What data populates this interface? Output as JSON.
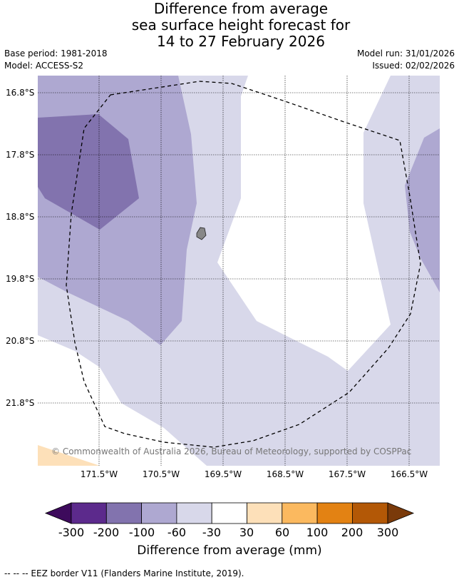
{
  "title_lines": [
    "Difference from average",
    "sea surface height forecast for",
    "14 to 27 February 2026"
  ],
  "base_period": "Base period: 1981-2018",
  "model": "Model: ACCESS-S2",
  "model_run": "Model run: 31/01/2026",
  "issued": "Issued: 02/02/2026",
  "attribution": "© Commonwealth of Australia 2026, Bureau of Meteorology, supported by COSPPac",
  "lat_labels": [
    "16.8°S",
    "17.8°S",
    "18.8°S",
    "19.8°S",
    "20.8°S",
    "21.8°S"
  ],
  "lon_labels": [
    "171.5°W",
    "170.5°W",
    "169.5°W",
    "168.5°W",
    "167.5°W",
    "166.5°W"
  ],
  "colorbar": {
    "ticks": [
      "-300",
      "-200",
      "-100",
      "-60",
      "-30",
      "30",
      "60",
      "100",
      "200",
      "300"
    ],
    "colors": [
      "#3d0a5c",
      "#5c2a8c",
      "#8273ae",
      "#aea8d1",
      "#d8d8ea",
      "#ffffff",
      "#fde0b9",
      "#fbb95f",
      "#e38213",
      "#b35806",
      "#7a3a0a"
    ],
    "title": "Difference from average (mm)"
  },
  "footnote": "--  --  -- EEZ border V11 (Flanders Marine Institute, 2019).",
  "colors": {
    "level_m100": "#8273ae",
    "level_m60": "#aea8d1",
    "level_m30": "#d8d8ea",
    "level_p30": "#fde0b9",
    "island": "#888888"
  }
}
